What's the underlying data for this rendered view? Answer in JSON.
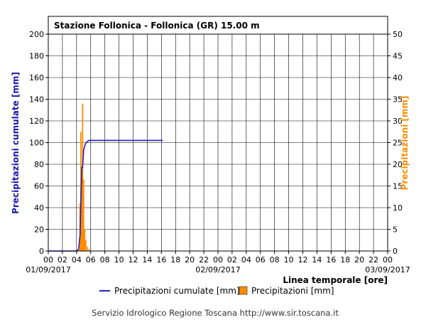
{
  "chart_data": {
    "type": "bar",
    "title": "Stazione Follonica - Follonica (GR) 15.00 m",
    "xlabel": "Linea temporale [ore]",
    "ylabel_left": "Precipitazioni cumulate [mm]",
    "ylabel_right": "Precipitazioni [mm]",
    "ylim_left": [
      0,
      200
    ],
    "ylim_right": [
      0,
      50
    ],
    "yticks_left": [
      "0",
      "20",
      "40",
      "60",
      "80",
      "100",
      "120",
      "140",
      "160",
      "180",
      "200"
    ],
    "yticks_right": [
      "0",
      "5",
      "10",
      "15",
      "20",
      "25",
      "30",
      "35",
      "40",
      "45",
      "50"
    ],
    "xlim_hours": [
      0,
      48
    ],
    "xtick_labels": [
      "00",
      "02",
      "04",
      "06",
      "08",
      "10",
      "12",
      "14",
      "16",
      "18",
      "20",
      "22",
      "00",
      "02",
      "04",
      "06",
      "08",
      "10",
      "12",
      "14",
      "16",
      "18",
      "20",
      "22",
      "00"
    ],
    "date_labels": [
      {
        "label": "01/09/2017",
        "hour": 0
      },
      {
        "label": "02/09/2017",
        "hour": 24
      },
      {
        "label": "03/09/2017",
        "hour": 48
      }
    ],
    "grid": true,
    "series": [
      {
        "name": "Precipitazioni cumulate [mm]",
        "kind": "line",
        "axis": "left",
        "color": "#1f1fbf",
        "points": [
          [
            0,
            0
          ],
          [
            4.0,
            0
          ],
          [
            4.3,
            2
          ],
          [
            4.5,
            15
          ],
          [
            4.6,
            44
          ],
          [
            4.75,
            77
          ],
          [
            4.85,
            77
          ],
          [
            5.0,
            93
          ],
          [
            5.2,
            98
          ],
          [
            5.5,
            101
          ],
          [
            5.8,
            102
          ],
          [
            6.0,
            102
          ],
          [
            16.2,
            102
          ]
        ]
      },
      {
        "name": "Precipitazioni [mm]",
        "kind": "bar",
        "axis": "right",
        "color": "#ff8c00",
        "bars": [
          [
            4.3,
            0.5
          ],
          [
            4.5,
            11
          ],
          [
            4.6,
            27.5
          ],
          [
            4.75,
            17
          ],
          [
            4.85,
            34
          ],
          [
            5.0,
            16.5
          ],
          [
            5.15,
            5
          ],
          [
            5.3,
            2.5
          ],
          [
            5.55,
            1
          ],
          [
            5.8,
            0.4
          ]
        ]
      }
    ],
    "legend_position": "bottom"
  },
  "footer": "Servizio Idrologico Regione Toscana http://www.sir.toscana.it"
}
